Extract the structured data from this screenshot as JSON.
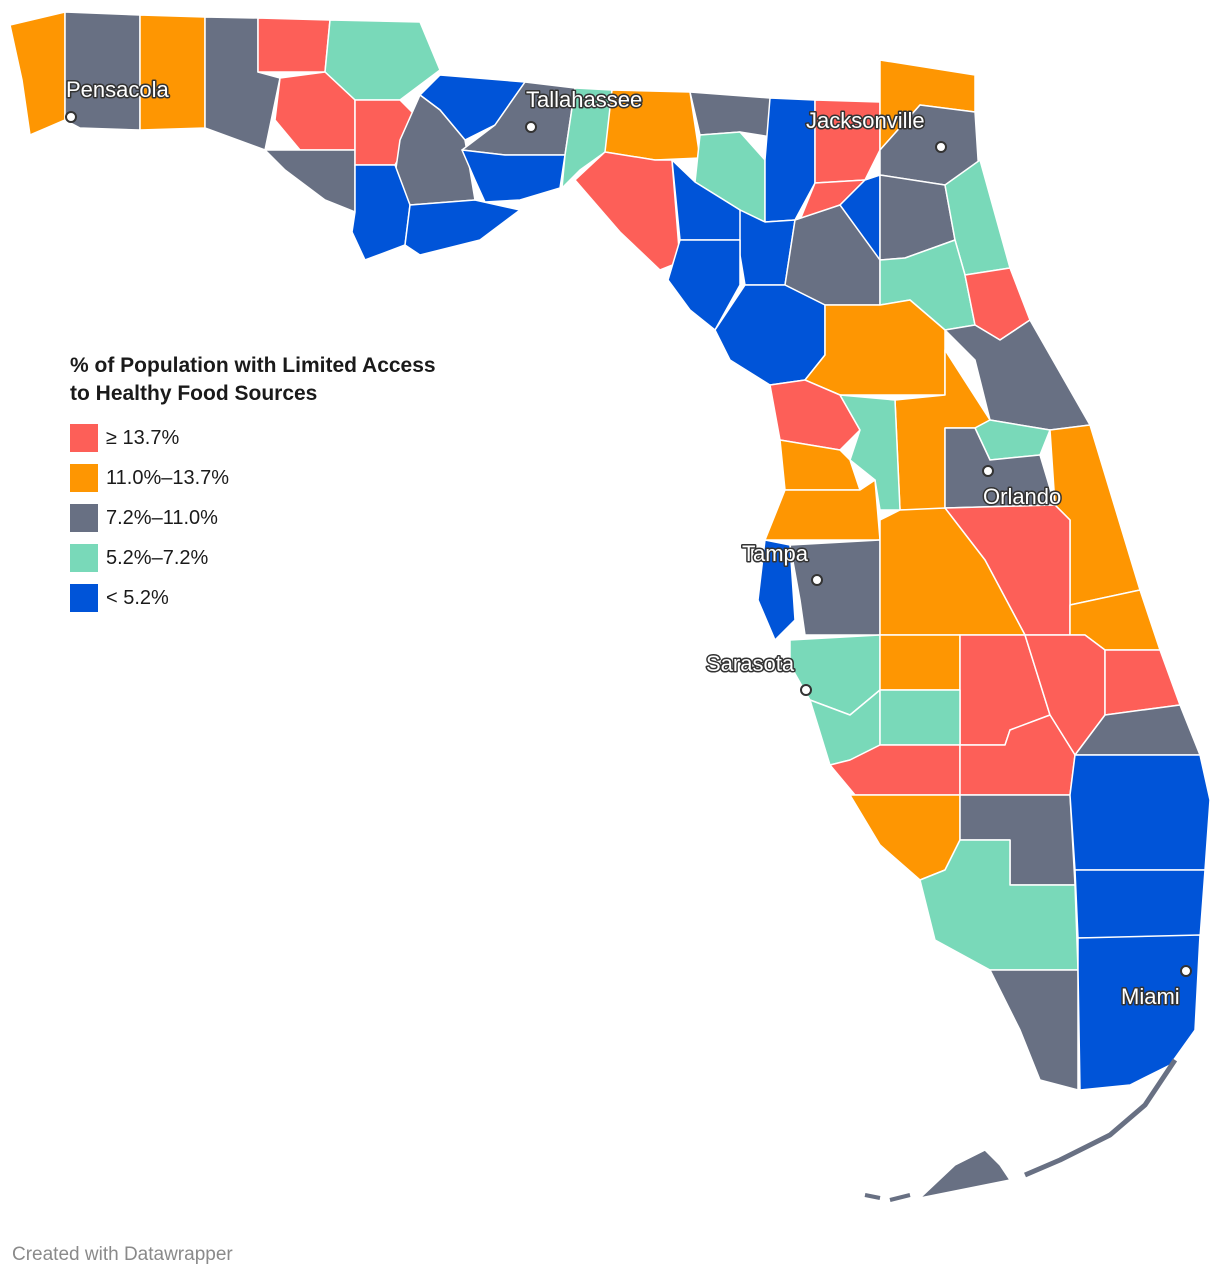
{
  "legend": {
    "title_line1": "% of Population with Limited Access",
    "title_line2": "to Healthy Food Sources",
    "classes": [
      {
        "label": "≥ 13.7%",
        "color": "#fd5f58"
      },
      {
        "label": "11.0%–13.7%",
        "color": "#fe9602"
      },
      {
        "label": "7.2%–11.0%",
        "color": "#687083"
      },
      {
        "label": "5.2%–7.2%",
        "color": "#79d9b9"
      },
      {
        "label": "< 5.2%",
        "color": "#0054d8"
      }
    ]
  },
  "cities": [
    {
      "name": "Pensacola"
    },
    {
      "name": "Tallahassee"
    },
    {
      "name": "Jacksonville"
    },
    {
      "name": "Orlando"
    },
    {
      "name": "Tampa"
    },
    {
      "name": "Sarasota"
    },
    {
      "name": "Miami"
    }
  ],
  "credit": "Created with Datawrapper"
}
